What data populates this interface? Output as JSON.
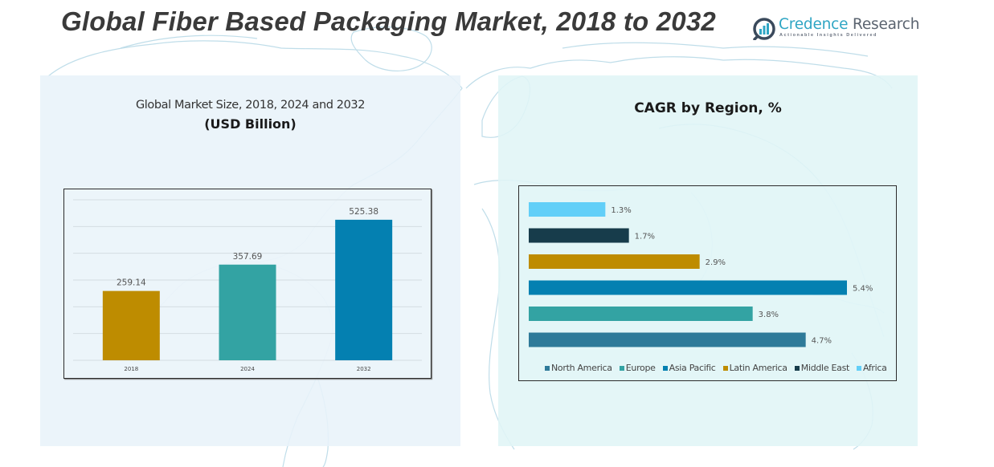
{
  "header": {
    "title": "Global Fiber Based Packaging Market, 2018 to 2032",
    "logo": {
      "name_part1": "Credence",
      "name_part2": "Research",
      "tagline": "Actionable Insights Delivered",
      "icon": "bar-chart-magnifier-icon"
    }
  },
  "left_panel": {
    "subtitle_line1": "Global Market Size, 2018, 2024 and 2032",
    "subtitle_line2": "(USD Billion)"
  },
  "right_panel": {
    "subtitle": "CAGR by Region, %"
  },
  "colors": {
    "gold": "#BE8C00",
    "teal": "#33A3A3",
    "blue": "#0480B1",
    "dark": "#173C4B",
    "light_blue": "#62CFF8",
    "steel_blue": "#2E7A99",
    "map_line": "#a9cfe0"
  },
  "chart_data": [
    {
      "type": "bar",
      "title": "Global Market Size, 2018, 2024 and 2032 (USD Billion)",
      "categories": [
        "2018",
        "2024",
        "2032"
      ],
      "values": [
        259.14,
        357.69,
        525.38
      ],
      "data_labels": [
        "259.14",
        "357.69",
        "525.38"
      ],
      "bar_colors": [
        "#BE8C00",
        "#33A3A3",
        "#0480B1"
      ],
      "xlabel": "",
      "ylabel": "",
      "ylim": [
        0,
        600
      ],
      "grid": true,
      "gridline_count": 6,
      "y_ticks_visible": false
    },
    {
      "type": "bar",
      "orientation": "horizontal",
      "title": "CAGR by Region, %",
      "categories": [
        "Africa",
        "Middle East",
        "Latin America",
        "Asia Pacific",
        "Europe",
        "North America"
      ],
      "values": [
        1.3,
        1.7,
        2.9,
        5.4,
        3.8,
        4.7
      ],
      "data_labels": [
        "1.3%",
        "1.7%",
        "2.9%",
        "5.4%",
        "3.8%",
        "4.7%"
      ],
      "bar_colors": [
        "#62CFF8",
        "#173C4B",
        "#BE8C00",
        "#0480B1",
        "#33A3A3",
        "#2E7A99"
      ],
      "xlim": [
        0,
        6
      ],
      "grid": false,
      "legend": {
        "placement": "bottom",
        "entries": [
          {
            "label": "North America",
            "color": "#2E7A99"
          },
          {
            "label": "Europe",
            "color": "#33A3A3"
          },
          {
            "label": "Asia Pacific",
            "color": "#0480B1"
          },
          {
            "label": "Latin America",
            "color": "#BE8C00"
          },
          {
            "label": "Middle East",
            "color": "#173C4B"
          },
          {
            "label": "Africa",
            "color": "#62CFF8"
          }
        ]
      }
    }
  ]
}
